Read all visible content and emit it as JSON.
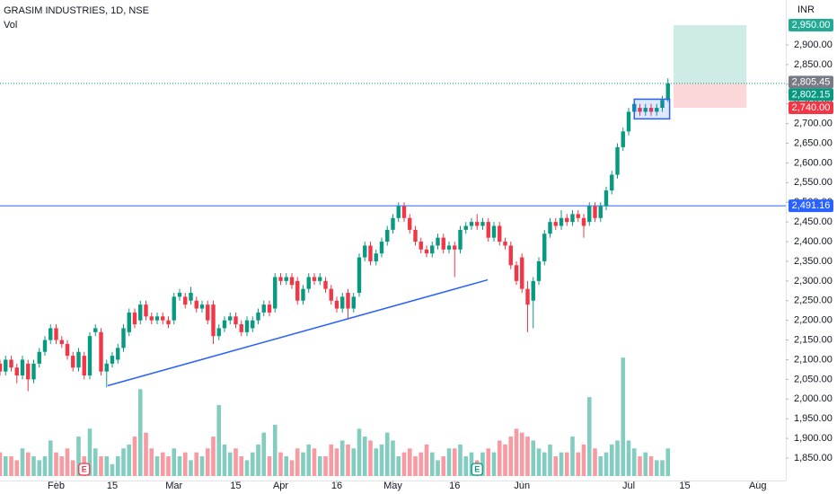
{
  "chart_data": {
    "type": "candlestick",
    "title": "GRASIM INDUSTRIES, 1D, NSE",
    "volume_label": "Vol",
    "currency": "INR",
    "up_color": "#089981",
    "down_color": "#f23645",
    "xlim": [
      0,
      140
    ],
    "ylim": [
      1793,
      3014
    ],
    "vlim": [
      0,
      3.3
    ],
    "xticks": [
      {
        "value": 10,
        "label": "Feb"
      },
      {
        "value": 20,
        "label": "15"
      },
      {
        "value": 31,
        "label": "Mar"
      },
      {
        "value": 42,
        "label": "15"
      },
      {
        "value": 50,
        "label": "Apr"
      },
      {
        "value": 60,
        "label": "16"
      },
      {
        "value": 70,
        "label": "May"
      },
      {
        "value": 81,
        "label": "16"
      },
      {
        "value": 93,
        "label": "Jun"
      },
      {
        "value": 112,
        "label": "Jul"
      },
      {
        "value": 122,
        "label": "15"
      },
      {
        "value": 135,
        "label": "Aug"
      }
    ],
    "yticks": [
      {
        "value": 1850,
        "label": "1,850.00"
      },
      {
        "value": 1900,
        "label": "1,900.00"
      },
      {
        "value": 1950,
        "label": "1,950.00"
      },
      {
        "value": 2000,
        "label": "2,000.00"
      },
      {
        "value": 2050,
        "label": "2,050.00"
      },
      {
        "value": 2100,
        "label": "2,100.00"
      },
      {
        "value": 2150,
        "label": "2,150.00"
      },
      {
        "value": 2200,
        "label": "2,200.00"
      },
      {
        "value": 2250,
        "label": "2,250.00"
      },
      {
        "value": 2300,
        "label": "2,300.00"
      },
      {
        "value": 2350,
        "label": "2,350.00"
      },
      {
        "value": 2400,
        "label": "2,400.00"
      },
      {
        "value": 2450,
        "label": "2,450.00"
      },
      {
        "value": 2500,
        "label": "2,500.00"
      },
      {
        "value": 2550,
        "label": "2,550.00"
      },
      {
        "value": 2600,
        "label": "2,600.00"
      },
      {
        "value": 2650,
        "label": "2,650.00"
      },
      {
        "value": 2700,
        "label": "2,700.00"
      },
      {
        "value": 2750,
        "label": "2,750.00"
      },
      {
        "value": 2800,
        "label": "2,800.00"
      },
      {
        "value": 2850,
        "label": "2,850.00"
      },
      {
        "value": 2900,
        "label": "2,900.00"
      }
    ],
    "open": [
      2090,
      2070,
      2100,
      2080,
      2060,
      2090,
      2050,
      2090,
      2120,
      2150,
      2180,
      2150,
      2140,
      2110,
      2080,
      2110,
      2060,
      2170,
      2170,
      2070,
      2090,
      2100,
      2130,
      2170,
      2220,
      2200,
      2240,
      2210,
      2200,
      2210,
      2200,
      2200,
      2260,
      2260,
      2250,
      2250,
      2230,
      2240,
      2240,
      2160,
      2180,
      2200,
      2210,
      2190,
      2170,
      2180,
      2200,
      2220,
      2240,
      2230,
      2310,
      2300,
      2310,
      2300,
      2250,
      2280,
      2310,
      2300,
      2300,
      2280,
      2250,
      2230,
      2270,
      2230,
      2270,
      2360,
      2390,
      2350,
      2370,
      2400,
      2430,
      2460,
      2490,
      2460,
      2430,
      2400,
      2380,
      2370,
      2390,
      2410,
      2380,
      2390,
      2380,
      2430,
      2440,
      2450,
      2440,
      2450,
      2410,
      2440,
      2400,
      2390,
      2340,
      2360,
      2280,
      2250,
      2300,
      2350,
      2420,
      2450,
      2440,
      2460,
      2450,
      2470,
      2460,
      2450,
      2490,
      2460,
      2490,
      2530,
      2570,
      2640,
      2680,
      2730,
      2740,
      2730,
      2740,
      2730,
      2740,
      2760
    ],
    "high": [
      2100,
      2110,
      2110,
      2090,
      2110,
      2100,
      2100,
      2130,
      2160,
      2190,
      2190,
      2160,
      2150,
      2120,
      2130,
      2120,
      2170,
      2190,
      2180,
      2100,
      2120,
      2140,
      2190,
      2230,
      2230,
      2250,
      2250,
      2220,
      2220,
      2220,
      2210,
      2270,
      2280,
      2270,
      2285,
      2260,
      2250,
      2250,
      2250,
      2190,
      2210,
      2220,
      2220,
      2200,
      2210,
      2210,
      2230,
      2250,
      2250,
      2320,
      2320,
      2320,
      2320,
      2310,
      2290,
      2320,
      2320,
      2320,
      2310,
      2290,
      2260,
      2270,
      2280,
      2270,
      2370,
      2400,
      2400,
      2380,
      2410,
      2440,
      2470,
      2500,
      2500,
      2470,
      2440,
      2410,
      2390,
      2400,
      2420,
      2420,
      2400,
      2400,
      2440,
      2450,
      2460,
      2470,
      2460,
      2460,
      2450,
      2450,
      2410,
      2400,
      2350,
      2370,
      2300,
      2310,
      2360,
      2430,
      2460,
      2460,
      2480,
      2470,
      2480,
      2480,
      2470,
      2500,
      2500,
      2500,
      2540,
      2580,
      2650,
      2690,
      2740,
      2760,
      2750,
      2750,
      2750,
      2750,
      2770,
      2815
    ],
    "low": [
      2060,
      2060,
      2070,
      2040,
      2050,
      2020,
      2040,
      2080,
      2110,
      2140,
      2140,
      2130,
      2100,
      2070,
      2070,
      2050,
      2050,
      2160,
      2060,
      2030,
      2080,
      2090,
      2120,
      2160,
      2180,
      2190,
      2200,
      2190,
      2190,
      2190,
      2180,
      2190,
      2250,
      2230,
      2240,
      2220,
      2220,
      2190,
      2140,
      2150,
      2170,
      2190,
      2180,
      2160,
      2160,
      2170,
      2190,
      2210,
      2210,
      2220,
      2290,
      2290,
      2280,
      2240,
      2240,
      2270,
      2290,
      2290,
      2270,
      2240,
      2220,
      2220,
      2205,
      2220,
      2260,
      2350,
      2340,
      2340,
      2360,
      2390,
      2420,
      2450,
      2450,
      2420,
      2390,
      2370,
      2360,
      2360,
      2380,
      2370,
      2370,
      2310,
      2370,
      2420,
      2430,
      2430,
      2430,
      2400,
      2400,
      2390,
      2380,
      2330,
      2290,
      2270,
      2170,
      2180,
      2290,
      2340,
      2410,
      2430,
      2430,
      2440,
      2440,
      2450,
      2410,
      2440,
      2450,
      2450,
      2480,
      2520,
      2560,
      2630,
      2670,
      2720,
      2720,
      2720,
      2720,
      2720,
      2730,
      2755
    ],
    "close": [
      2070,
      2100,
      2080,
      2060,
      2100,
      2050,
      2090,
      2120,
      2150,
      2180,
      2150,
      2140,
      2110,
      2080,
      2120,
      2060,
      2160,
      2180,
      2070,
      2090,
      2110,
      2130,
      2180,
      2220,
      2190,
      2240,
      2210,
      2200,
      2210,
      2200,
      2190,
      2260,
      2270,
      2240,
      2270,
      2230,
      2240,
      2200,
      2160,
      2180,
      2200,
      2210,
      2190,
      2170,
      2200,
      2200,
      2220,
      2240,
      2220,
      2310,
      2300,
      2310,
      2290,
      2250,
      2280,
      2310,
      2300,
      2310,
      2280,
      2250,
      2230,
      2260,
      2230,
      2260,
      2360,
      2390,
      2350,
      2370,
      2400,
      2430,
      2460,
      2490,
      2460,
      2430,
      2400,
      2380,
      2370,
      2390,
      2410,
      2380,
      2390,
      2380,
      2430,
      2440,
      2450,
      2440,
      2450,
      2410,
      2440,
      2400,
      2390,
      2340,
      2300,
      2280,
      2240,
      2300,
      2350,
      2420,
      2450,
      2440,
      2460,
      2450,
      2470,
      2460,
      2440,
      2490,
      2460,
      2490,
      2530,
      2570,
      2640,
      2680,
      2730,
      2750,
      2730,
      2740,
      2730,
      2740,
      2760,
      2802.15
    ],
    "volume": [
      0.6,
      0.5,
      0.5,
      0.4,
      0.7,
      0.6,
      0.5,
      0.4,
      0.5,
      0.9,
      0.6,
      0.5,
      0.7,
      0.4,
      1.0,
      0.5,
      1.2,
      0.7,
      0.5,
      0.5,
      0.3,
      0.5,
      0.7,
      0.8,
      1.0,
      2.2,
      1.1,
      0.7,
      0.5,
      0.6,
      0.5,
      0.7,
      0.5,
      0.6,
      0.4,
      0.6,
      0.5,
      0.7,
      1.0,
      1.8,
      0.8,
      0.6,
      0.7,
      0.5,
      0.4,
      0.6,
      0.8,
      1.1,
      0.5,
      1.3,
      0.6,
      0.5,
      0.4,
      0.7,
      0.6,
      0.8,
      0.7,
      0.5,
      0.5,
      0.8,
      0.7,
      0.9,
      0.8,
      0.7,
      1.2,
      1.0,
      0.9,
      0.7,
      0.8,
      1.1,
      0.9,
      0.5,
      0.6,
      0.7,
      0.5,
      0.6,
      0.8,
      0.6,
      0.4,
      0.5,
      0.7,
      0.7,
      0.8,
      0.5,
      0.6,
      0.4,
      0.6,
      0.7,
      0.6,
      0.9,
      0.8,
      1.0,
      1.2,
      1.1,
      1.0,
      0.9,
      0.7,
      0.6,
      0.8,
      0.5,
      0.6,
      0.6,
      1.0,
      0.6,
      0.8,
      2.0,
      0.7,
      0.5,
      0.6,
      0.8,
      0.9,
      3.0,
      0.9,
      0.7,
      0.5,
      0.6,
      0.5,
      0.4,
      0.4,
      0.7
    ],
    "price_labels": [
      {
        "value": 2950,
        "label": "2,950.00",
        "color": "#22ab94"
      },
      {
        "value": 2805.45,
        "label": "2,805.45",
        "color": "#787b86"
      },
      {
        "value": 2802.15,
        "label": "2,802.15",
        "color": "#089981",
        "line": "dotted"
      },
      {
        "value": 2740,
        "label": "2,740.00",
        "color": "#f23645"
      },
      {
        "value": 2491.16,
        "label": "2,491.16",
        "color": "#2962ff",
        "line": "solid"
      }
    ],
    "trendline": {
      "x": [
        19.2,
        86.9
      ],
      "y": [
        2034,
        2303
      ],
      "color": "#2962ff"
    },
    "box": {
      "x": [
        113,
        119.3
      ],
      "top": 2762,
      "bottom": 2712,
      "color": "#2962ff"
    },
    "position": {
      "x": [
        120,
        133
      ],
      "target": 2950,
      "entry": 2802.15,
      "stop": 2740
    },
    "events": [
      {
        "x": 15,
        "label": "E"
      },
      {
        "x": 85,
        "label": "E"
      }
    ]
  }
}
